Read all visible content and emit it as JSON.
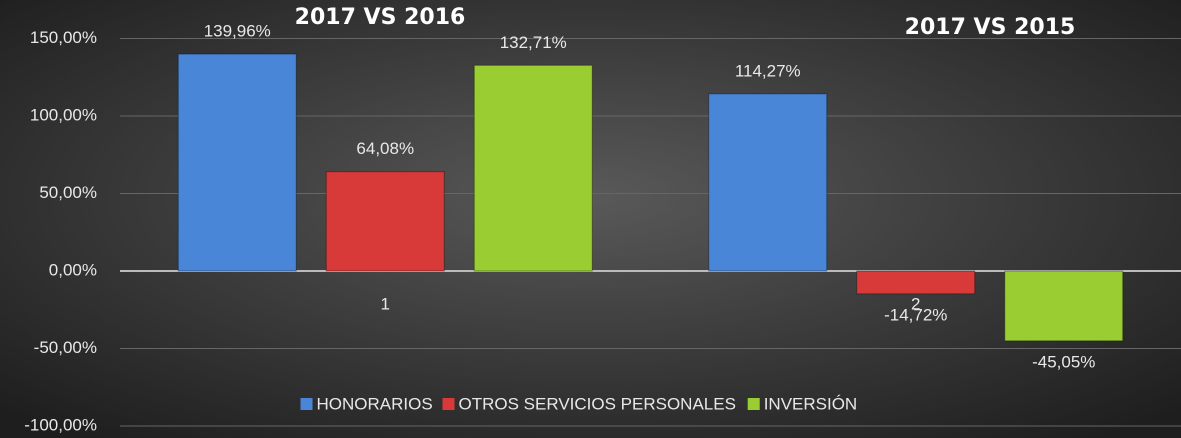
{
  "chart_data": {
    "type": "bar",
    "annotations": [
      "2017 VS 2016",
      "2017 VS 2015"
    ],
    "categories": [
      "1",
      "2"
    ],
    "series": [
      {
        "name": "HONORARIOS",
        "color": "#4a86d8",
        "values": [
          139.96,
          114.27
        ],
        "value_labels": [
          "139,96%",
          "114,27%"
        ]
      },
      {
        "name": "OTROS SERVICIOS PERSONALES",
        "color": "#d83a3a",
        "values": [
          64.08,
          -14.72
        ],
        "value_labels": [
          "64,08%",
          "-14,72%"
        ]
      },
      {
        "name": "INVERSIÓN",
        "color": "#9acd32",
        "values": [
          132.71,
          -45.05
        ],
        "value_labels": [
          "132,71%",
          "-45,05%"
        ]
      }
    ],
    "ylim": [
      -100,
      150
    ],
    "yticks": [
      {
        "value": -100,
        "label": "-100,00%"
      },
      {
        "value": -50,
        "label": "-50,00%"
      },
      {
        "value": 0,
        "label": "0,00%"
      },
      {
        "value": 50,
        "label": "50,00%"
      },
      {
        "value": 100,
        "label": "100,00%"
      },
      {
        "value": 150,
        "label": "150,00%"
      }
    ],
    "grid": true,
    "legend": "bottom"
  }
}
